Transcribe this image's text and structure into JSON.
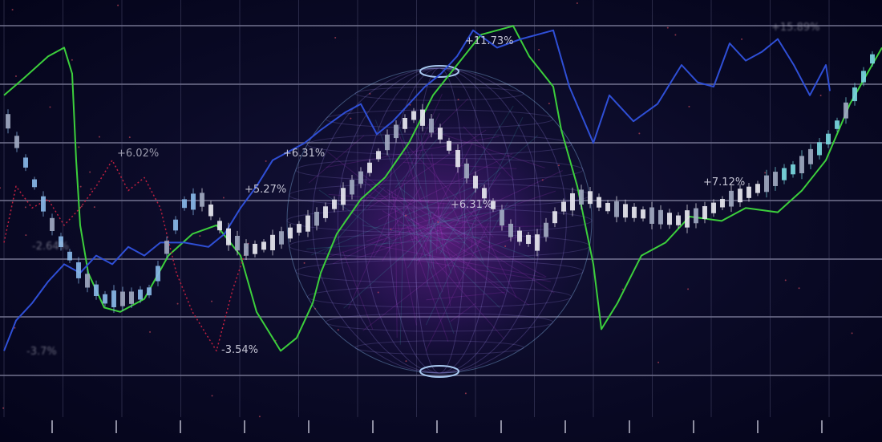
{
  "chart_data": {
    "type": "line",
    "title": "",
    "xlabel": "",
    "ylabel": "",
    "grid": true,
    "legend": "none",
    "annotations": [
      "+15.89%",
      "+11.73%",
      "+6.02%",
      "+6.31%",
      "+5.27%",
      "+6.31%",
      "+7.12%",
      "-2.64%",
      "-3.7%",
      "-3.54%"
    ],
    "series": [
      {
        "color": "#3ccf3c",
        "style": "line",
        "x": [
          0.5,
          3,
          6,
          8,
          9,
          9.5,
          10,
          11,
          13,
          15,
          18,
          21,
          24,
          27,
          30,
          32,
          35,
          37,
          39,
          40,
          42,
          45,
          48,
          51,
          54,
          57,
          60,
          64,
          66,
          69,
          70,
          72,
          74,
          75,
          77,
          80,
          83,
          86,
          90,
          93,
          97,
          100,
          103,
          106,
          110
        ],
        "values": [
          78,
          82,
          87,
          89,
          83,
          63,
          48,
          37,
          29,
          28,
          31,
          41,
          46,
          48,
          41,
          28,
          19,
          22,
          30,
          37,
          46,
          54,
          59,
          67,
          78,
          85,
          92,
          94,
          87,
          80,
          70,
          57,
          39,
          24,
          30,
          41,
          44,
          50,
          49,
          52,
          51,
          56,
          63,
          76,
          89
        ]
      },
      {
        "color": "#2f4fd6",
        "style": "line",
        "x": [
          0.5,
          2,
          4,
          6,
          8,
          10,
          12,
          14,
          16,
          18,
          20,
          23,
          26,
          28,
          30,
          32,
          34,
          36,
          38,
          40,
          43,
          45,
          47,
          49,
          51,
          53,
          55,
          57,
          59,
          62,
          65,
          69,
          71,
          74,
          76,
          79,
          82,
          85,
          87,
          89,
          91,
          93,
          95,
          97,
          99,
          101,
          103,
          103.5
        ],
        "values": [
          19,
          26,
          30,
          35,
          39,
          37,
          41,
          39,
          43,
          41,
          44,
          44,
          43,
          46,
          52,
          57,
          63,
          65,
          67,
          70,
          74,
          76,
          69,
          72,
          76,
          80,
          83,
          87,
          93,
          89,
          91,
          93,
          80,
          67,
          78,
          72,
          76,
          85,
          81,
          80,
          90,
          86,
          88,
          91,
          85,
          78,
          85,
          79
        ]
      },
      {
        "color": "#c02040",
        "style": "dotted",
        "x": [
          0.5,
          2,
          4,
          6,
          8,
          10,
          12,
          14,
          16,
          18,
          20,
          22,
          24,
          26,
          27,
          29,
          31
        ],
        "values": [
          44,
          57,
          52,
          54,
          48,
          52,
          57,
          63,
          56,
          59,
          52,
          37,
          28,
          22,
          19,
          33,
          44
        ]
      },
      {
        "color": "#e8e8f0",
        "style": "candlestick",
        "x": [
          1,
          4,
          7,
          10,
          13,
          16,
          19,
          21,
          23,
          25.5,
          28,
          31,
          34,
          37,
          40,
          43,
          46,
          49,
          52,
          55,
          58,
          61,
          64,
          67,
          70,
          73,
          76,
          79,
          82,
          85,
          88,
          91,
          94,
          97,
          100,
          103,
          106,
          109.5
        ],
        "values": [
          72,
          59,
          46,
          37,
          31,
          31,
          33,
          44,
          53,
          54,
          46,
          42,
          44,
          47,
          50,
          55,
          61,
          69,
          74,
          69,
          61,
          54,
          46,
          44,
          52,
          55,
          52,
          51,
          50,
          49,
          51,
          54,
          56,
          59,
          62,
          67,
          76,
          89
        ]
      }
    ]
  }
}
